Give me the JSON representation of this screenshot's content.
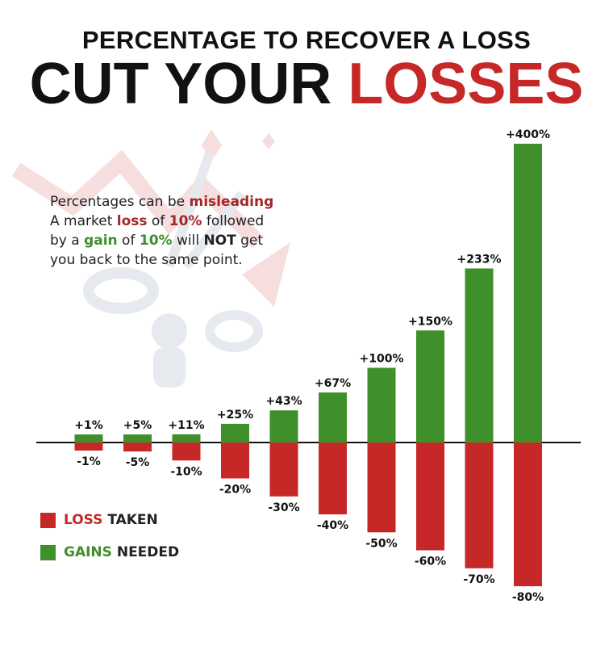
{
  "header": {
    "subtitle": "PERCENTAGE TO RECOVER A LOSS",
    "title_part1": "CUT YOUR ",
    "title_part2": "LOSSES"
  },
  "note": {
    "line1_a": "Percentages can be ",
    "line1_b": "misleading",
    "line2_a": "A market ",
    "line2_b": "loss",
    "line2_c": " of ",
    "line2_d": "10%",
    "line2_e": " followed",
    "line3_a": "by a ",
    "line3_b": "gain",
    "line3_c": " of ",
    "line3_d": "10%",
    "line3_e": " will ",
    "line3_f": "NOT",
    "line3_g": " get",
    "line4": "you back to the same point."
  },
  "legend": {
    "loss_word": "LOSS",
    "loss_rest": " TAKEN",
    "gain_word": "GAINS",
    "gain_rest": " NEEDED"
  },
  "colors": {
    "loss": "#c62828",
    "gain": "#3f8f2a",
    "title_red": "#c62828"
  },
  "chart_data": {
    "type": "bar",
    "series": [
      {
        "name": "LOSS TAKEN",
        "values": [
          -1,
          -5,
          -10,
          -20,
          -30,
          -40,
          -50,
          -60,
          -70,
          -80
        ],
        "labels": [
          "-1%",
          "-5%",
          "-10%",
          "-20%",
          "-30%",
          "-40%",
          "-50%",
          "-60%",
          "-70%",
          "-80%"
        ]
      },
      {
        "name": "GAINS NEEDED",
        "values": [
          1,
          5,
          11,
          25,
          43,
          67,
          100,
          150,
          233,
          400
        ],
        "labels": [
          "+1%",
          "+5%",
          "+11%",
          "+25%",
          "+43%",
          "+67%",
          "+100%",
          "+150%",
          "+233%",
          "+400%"
        ]
      }
    ],
    "legend_position": "bottom-left",
    "grid": false
  }
}
